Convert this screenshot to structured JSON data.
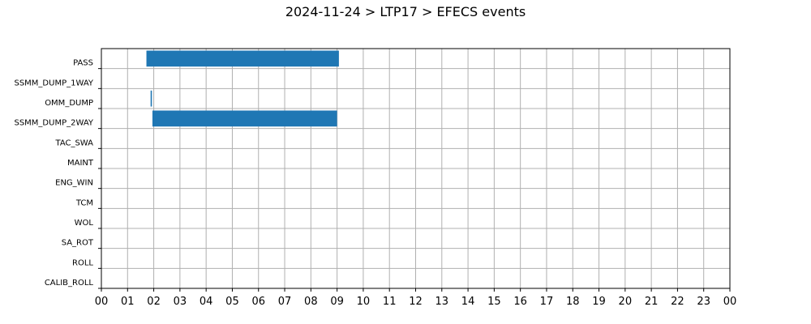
{
  "chart_data": {
    "type": "bar",
    "orientation": "horizontal-gantt",
    "title": "2024-11-24 > LTP17 > EFECS events",
    "xlabel": "",
    "ylabel": "",
    "xlim": [
      0,
      24
    ],
    "x_tick_labels": [
      "00",
      "01",
      "02",
      "03",
      "04",
      "05",
      "06",
      "07",
      "08",
      "09",
      "10",
      "11",
      "12",
      "13",
      "14",
      "15",
      "16",
      "17",
      "18",
      "19",
      "20",
      "21",
      "22",
      "23",
      "00"
    ],
    "categories": [
      "PASS",
      "SSMM_DUMP_1WAY",
      "OMM_DUMP",
      "SSMM_DUMP_2WAY",
      "TAC_SWA",
      "MAINT",
      "ENG_WIN",
      "TCM",
      "WOL",
      "SA_ROT",
      "ROLL",
      "CALIB_ROLL"
    ],
    "series": [
      {
        "intervals": [
          {
            "category": "PASS",
            "start": 1.72,
            "end": 9.07
          },
          {
            "category": "OMM_DUMP",
            "start": 1.88,
            "end": 1.93
          },
          {
            "category": "SSMM_DUMP_2WAY",
            "start": 1.95,
            "end": 9.0
          }
        ]
      }
    ],
    "bar_color": "#1f77b4",
    "grid": true,
    "legend": "none"
  }
}
